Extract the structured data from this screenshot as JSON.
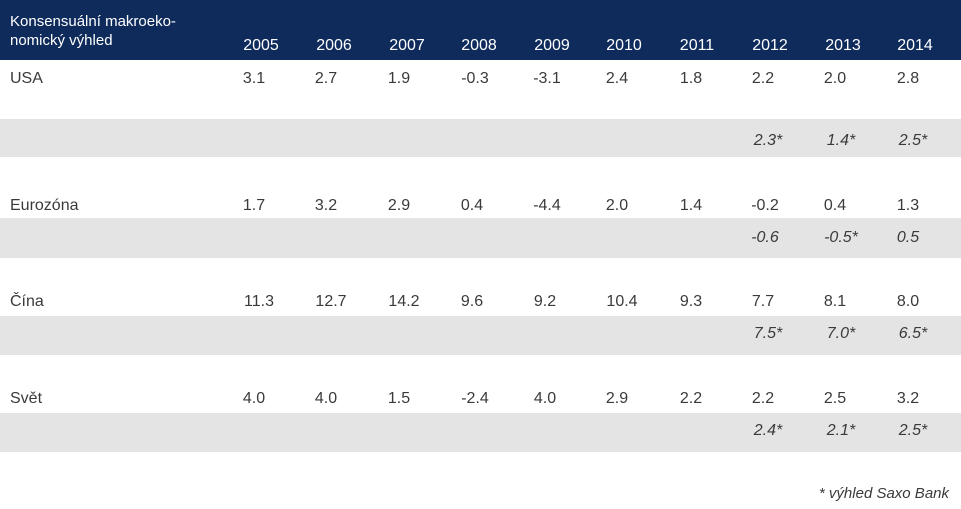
{
  "table": {
    "title_line1": "Konsensuální makroeko-",
    "title_line2": "nomický výhled",
    "years": [
      "2005",
      "2006",
      "2007",
      "2008",
      "2009",
      "2010",
      "2011",
      "2012",
      "2013",
      "2014"
    ],
    "rows": [
      {
        "label": "USA",
        "values": [
          "3.1",
          "2.7",
          "1.9",
          "-0.3",
          "-3.1",
          "2.4",
          "1.8",
          "2.2",
          "2.0",
          "2.8"
        ],
        "forecast": [
          "2.3*",
          "1.4*",
          "2.5*"
        ]
      },
      {
        "label": "Eurozóna",
        "values": [
          "1.7",
          "3.2",
          "2.9",
          "0.4",
          "-4.4",
          "2.0",
          "1.4",
          "-0.2",
          "0.4",
          "1.3"
        ],
        "forecast": [
          "-0.6",
          "-0.5*",
          "0.5"
        ]
      },
      {
        "label": "Čína",
        "values": [
          "11.3",
          "12.7",
          "14.2",
          "9.6",
          "9.2",
          "10.4",
          "9.3",
          "7.7",
          "8.1",
          "8.0"
        ],
        "forecast": [
          "7.5*",
          "7.0*",
          "6.5*"
        ]
      },
      {
        "label": "Svět",
        "values": [
          "4.0",
          "4.0",
          "1.5",
          "-2.4",
          "4.0",
          "2.9",
          "2.2",
          "2.2",
          "2.5",
          "3.2"
        ],
        "forecast": [
          "2.4*",
          "2.1*",
          "2.5*"
        ]
      }
    ],
    "footnote": "* výhled Saxo Bank"
  }
}
